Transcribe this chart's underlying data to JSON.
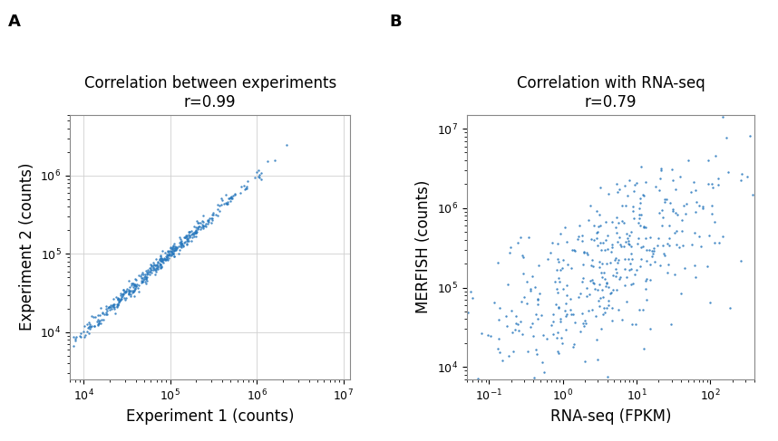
{
  "panel_A": {
    "label": "A",
    "title_line1": "Correlation between experiments",
    "title_line2": "r=0.99",
    "xlabel": "Experiment 1 (counts)",
    "ylabel": "Experiment 2 (counts)",
    "xlim_log": [
      7000,
      12000000.0
    ],
    "ylim_log": [
      2500,
      6000000.0
    ],
    "dot_color": "#2878bd",
    "dot_size": 3,
    "n_points": 450,
    "x_mean_log": 4.85,
    "x_std_log": 0.55,
    "noise_std": 0.045
  },
  "panel_B": {
    "label": "B",
    "title_line1": "Correlation with RNA-seq",
    "title_line2": "r=0.79",
    "xlabel": "RNA-seq (FPKM)",
    "ylabel": "MERFISH (counts)",
    "xlim_log": [
      0.05,
      400
    ],
    "ylim_log": [
      7000,
      15000000.0
    ],
    "dot_color": "#2878bd",
    "dot_size": 3,
    "n_points": 430,
    "x_mean_log": 0.55,
    "x_std_log": 0.9,
    "y_mean_log": 5.2,
    "y_std_log": 0.65,
    "noise_std_y": 0.5
  },
  "bg_color": "#ffffff",
  "label_fontsize": 13,
  "title_fontsize": 12,
  "axis_label_fontsize": 12,
  "tick_fontsize": 9,
  "grid_color": "#d0d0d0",
  "grid_linewidth": 0.6
}
